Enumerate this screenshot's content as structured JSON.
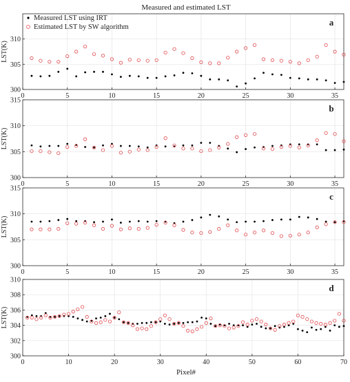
{
  "figure": {
    "title": "Measured and estimated LST",
    "xlabel": "Pixel#",
    "ylabel": "LST(K)",
    "legend": [
      "Measured LST using IRT",
      "Estimated LST by SW algorithm"
    ],
    "legend_placement": "top-left of panel a",
    "colors": {
      "measured": "#000000",
      "estimated": "#e0474c",
      "grid": "#e4e4e4"
    }
  },
  "chart_data": [
    {
      "type": "scatter",
      "panel_label": "a",
      "xlim": [
        0,
        36
      ],
      "ylim": [
        300,
        315
      ],
      "xticks": [
        0,
        5,
        10,
        15,
        20,
        25,
        30,
        35
      ],
      "yticks": [
        300,
        305,
        310
      ],
      "grid": true,
      "x": [
        1,
        2,
        3,
        4,
        5,
        6,
        7,
        8,
        9,
        10,
        11,
        12,
        13,
        14,
        15,
        16,
        17,
        18,
        19,
        20,
        21,
        22,
        23,
        24,
        25,
        26,
        27,
        28,
        29,
        30,
        31,
        32,
        33,
        34,
        35,
        36
      ],
      "series": [
        {
          "name": "Measured LST using IRT",
          "marker": "dot",
          "values": [
            302.7,
            302.6,
            302.7,
            303.5,
            304.1,
            302.6,
            303.4,
            303.5,
            303.5,
            303.0,
            302.5,
            302.7,
            302.6,
            302.3,
            302.3,
            302.6,
            302.8,
            303.3,
            303.2,
            302.7,
            302.0,
            302.0,
            301.8,
            300.6,
            301.2,
            302.2,
            303.3,
            303.0,
            302.9,
            302.3,
            302.2,
            302.0,
            302.0,
            301.8,
            301.3,
            301.5
          ]
        },
        {
          "name": "Estimated LST by SW algorithm",
          "marker": "open-circle",
          "values": [
            306.2,
            305.7,
            305.5,
            305.5,
            306.6,
            307.5,
            308.5,
            307.0,
            306.7,
            306.0,
            305.3,
            305.9,
            305.8,
            305.7,
            305.8,
            307.3,
            308.0,
            307.2,
            306.2,
            305.4,
            305.2,
            305.2,
            306.3,
            307.5,
            308.2,
            308.8,
            306.0,
            305.8,
            305.7,
            305.5,
            305.2,
            305.8,
            306.5,
            308.8,
            307.5,
            306.9
          ]
        }
      ]
    },
    {
      "type": "scatter",
      "panel_label": "b",
      "xlim": [
        0,
        36
      ],
      "ylim": [
        300,
        315
      ],
      "xticks": [
        0,
        5,
        10,
        15,
        20,
        25,
        30,
        35
      ],
      "yticks": [
        300,
        305,
        310,
        315
      ],
      "grid": true,
      "x": [
        1,
        2,
        3,
        4,
        5,
        6,
        7,
        8,
        9,
        10,
        11,
        12,
        13,
        14,
        15,
        16,
        17,
        18,
        19,
        20,
        21,
        22,
        23,
        24,
        25,
        26,
        27,
        28,
        29,
        30,
        31,
        32,
        33,
        34,
        35,
        36
      ],
      "series": [
        {
          "name": "Measured LST using IRT",
          "marker": "dot",
          "values": [
            306.2,
            306.0,
            306.1,
            306.1,
            306.5,
            306.3,
            305.9,
            305.8,
            306.2,
            306.5,
            306.1,
            306.1,
            306.0,
            305.8,
            306.2,
            306.0,
            306.0,
            306.2,
            306.2,
            306.7,
            306.7,
            306.1,
            305.6,
            304.9,
            305.5,
            305.8,
            305.9,
            306.1,
            306.2,
            306.4,
            306.4,
            306.4,
            306.4,
            305.3,
            305.3,
            305.4
          ]
        },
        {
          "name": "Estimated LST by SW algorithm",
          "marker": "open-circle",
          "values": [
            305.1,
            305.1,
            304.9,
            304.7,
            305.9,
            306.1,
            307.4,
            305.8,
            305.3,
            306.1,
            304.8,
            305.0,
            305.4,
            305.3,
            305.9,
            307.6,
            306.2,
            305.6,
            305.6,
            305.1,
            305.3,
            305.8,
            306.5,
            307.8,
            308.2,
            308.4,
            305.6,
            305.5,
            305.9,
            306.1,
            305.8,
            306.2,
            307.2,
            308.6,
            308.4,
            307.0
          ]
        }
      ]
    },
    {
      "type": "scatter",
      "panel_label": "c",
      "xlim": [
        0,
        36
      ],
      "ylim": [
        300,
        315
      ],
      "xticks": [
        0,
        5,
        10,
        15,
        20,
        25,
        30,
        35
      ],
      "yticks": [
        300,
        305,
        310,
        315
      ],
      "grid": true,
      "x": [
        1,
        2,
        3,
        4,
        5,
        6,
        7,
        8,
        9,
        10,
        11,
        12,
        13,
        14,
        15,
        16,
        17,
        18,
        19,
        20,
        21,
        22,
        23,
        24,
        25,
        26,
        27,
        28,
        29,
        30,
        31,
        32,
        33,
        34,
        35,
        36
      ],
      "series": [
        {
          "name": "Measured LST using IRT",
          "marker": "dot",
          "values": [
            308.5,
            308.5,
            308.6,
            308.8,
            309.0,
            308.6,
            308.6,
            308.4,
            308.5,
            308.9,
            308.3,
            308.5,
            308.6,
            308.5,
            308.6,
            308.5,
            308.2,
            308.5,
            308.8,
            309.3,
            309.8,
            309.5,
            308.9,
            308.4,
            308.5,
            308.5,
            308.6,
            308.8,
            308.9,
            308.9,
            309.4,
            309.3,
            309.0,
            308.5,
            308.4,
            308.6
          ]
        },
        {
          "name": "Estimated LST by SW algorithm",
          "marker": "open-circle",
          "values": [
            307.0,
            307.0,
            307.0,
            307.1,
            308.2,
            308.1,
            308.3,
            307.8,
            307.1,
            307.7,
            307.0,
            307.2,
            307.1,
            307.3,
            307.9,
            308.3,
            307.8,
            306.9,
            306.4,
            306.3,
            306.5,
            307.1,
            307.8,
            306.8,
            306.0,
            306.4,
            306.8,
            306.3,
            305.7,
            305.8,
            306.0,
            306.4,
            307.4,
            308.0,
            308.4,
            308.4
          ]
        }
      ]
    },
    {
      "type": "scatter",
      "panel_label": "d",
      "xlim": [
        0,
        70
      ],
      "ylim": [
        300,
        310
      ],
      "xticks": [
        0,
        10,
        20,
        30,
        40,
        50,
        60,
        70
      ],
      "yticks": [
        300,
        302,
        304,
        306,
        308,
        310
      ],
      "grid": true,
      "x": [
        1,
        2,
        3,
        4,
        5,
        6,
        7,
        8,
        9,
        10,
        11,
        12,
        13,
        14,
        15,
        16,
        17,
        18,
        19,
        20,
        21,
        22,
        23,
        24,
        25,
        26,
        27,
        28,
        29,
        30,
        31,
        32,
        33,
        34,
        35,
        36,
        37,
        38,
        39,
        40,
        41,
        42,
        43,
        44,
        45,
        46,
        47,
        48,
        49,
        50,
        51,
        52,
        53,
        54,
        55,
        56,
        57,
        58,
        59,
        60,
        61,
        62,
        63,
        64,
        65,
        66,
        67,
        68,
        69,
        70
      ],
      "series": [
        {
          "name": "Measured LST using IRT",
          "marker": "dot",
          "values": [
            305.1,
            305.3,
            305.2,
            305.2,
            305.6,
            305.1,
            305.1,
            305.2,
            305.2,
            305.2,
            305.1,
            304.9,
            304.7,
            304.5,
            304.6,
            304.9,
            305.0,
            305.2,
            305.5,
            305.0,
            304.8,
            304.4,
            304.3,
            304.2,
            304.2,
            304.3,
            304.3,
            304.4,
            304.4,
            304.5,
            304.2,
            304.1,
            304.2,
            304.3,
            304.3,
            304.4,
            304.4,
            304.5,
            305.0,
            304.9,
            304.2,
            303.9,
            304.1,
            304.0,
            304.2,
            304.0,
            304.0,
            304.0,
            303.8,
            304.1,
            304.2,
            303.8,
            303.6,
            303.6,
            303.9,
            303.7,
            303.8,
            304.0,
            304.2,
            303.5,
            303.3,
            303.1,
            303.7,
            303.4,
            303.5,
            303.8,
            303.3,
            304.0,
            303.8,
            303.9
          ]
        },
        {
          "name": "Estimated LST by SW algorithm",
          "marker": "open-circle",
          "values": [
            305.0,
            305.0,
            304.8,
            305.0,
            305.3,
            305.0,
            305.1,
            305.2,
            305.4,
            305.5,
            305.8,
            306.1,
            306.4,
            305.1,
            304.5,
            304.3,
            304.4,
            304.7,
            304.5,
            305.0,
            305.7,
            304.4,
            304.3,
            304.0,
            303.5,
            303.6,
            303.5,
            303.9,
            304.4,
            304.8,
            305.3,
            304.8,
            304.2,
            304.3,
            303.9,
            303.3,
            303.2,
            303.5,
            303.8,
            304.3,
            304.9,
            303.9,
            304.0,
            303.9,
            303.6,
            303.7,
            303.9,
            304.4,
            304.1,
            304.6,
            304.8,
            304.5,
            304.1,
            303.6,
            303.4,
            303.9,
            304.1,
            304.3,
            304.5,
            305.3,
            305.1,
            304.8,
            304.5,
            304.3,
            304.2,
            304.1,
            304.3,
            304.6,
            305.5,
            304.6
          ]
        }
      ]
    }
  ]
}
